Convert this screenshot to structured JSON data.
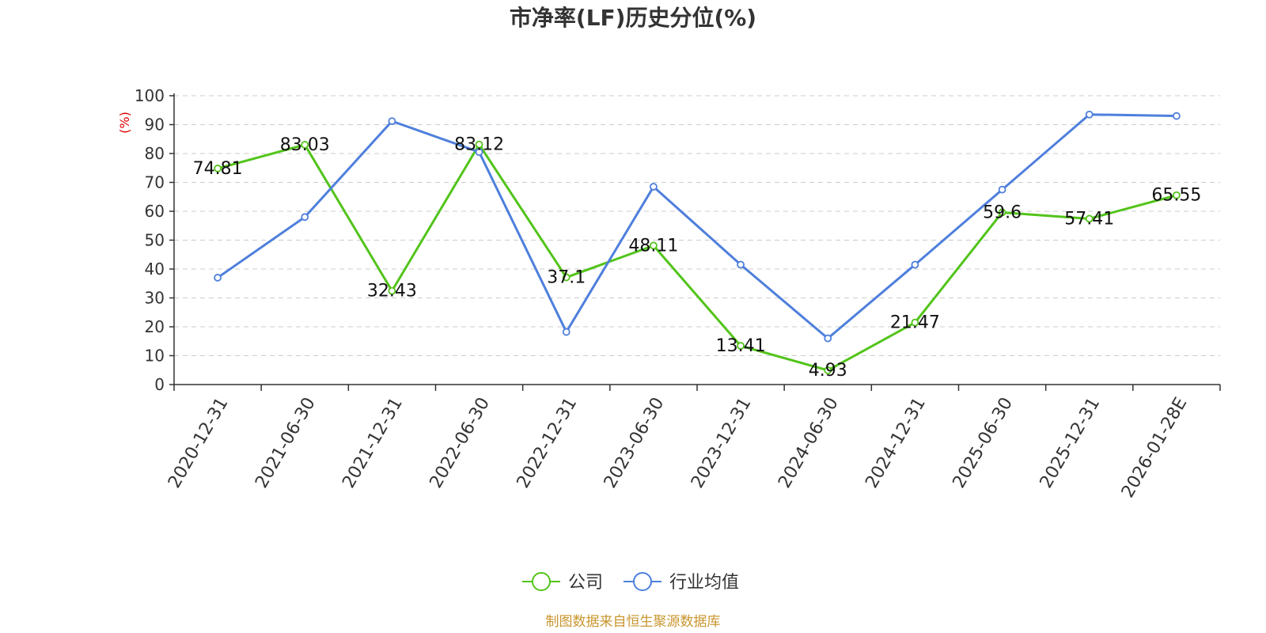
{
  "chart_data": {
    "type": "line",
    "title": "市净率(LF)历史分位(%)",
    "ylabel": "(%)",
    "ylim": [
      0,
      100
    ],
    "yticks": [
      0,
      10,
      20,
      30,
      40,
      50,
      60,
      70,
      80,
      90,
      100
    ],
    "grid": true,
    "legend_position": "bottom",
    "categories": [
      "2020-12-31",
      "2021-06-30",
      "2021-12-31",
      "2022-06-30",
      "2022-12-31",
      "2023-06-30",
      "2023-12-31",
      "2024-06-30",
      "2024-12-31",
      "2025-06-30",
      "2025-12-31",
      "2026-01-28E"
    ],
    "series": [
      {
        "name": "公司",
        "color": "#52c41a",
        "values": [
          74.81,
          83.03,
          32.43,
          83.12,
          37.1,
          48.11,
          13.41,
          4.93,
          21.47,
          59.6,
          57.41,
          65.55
        ],
        "labels": [
          "74.81",
          "83.03",
          "32.43",
          "83.12",
          "37.1",
          "48.11",
          "13.41",
          "4.93",
          "21.47",
          "59.6",
          "57.41",
          "65.55"
        ]
      },
      {
        "name": "行业均值",
        "color": "#4e7fdc",
        "values": [
          37,
          58,
          91.2,
          80.5,
          18.2,
          68.5,
          41.5,
          16,
          41.5,
          67.5,
          93.5,
          93
        ]
      }
    ],
    "source": "制图数据来自恒生聚源数据库",
    "colors": {
      "axis": "#333333",
      "grid": "#cccccc",
      "ylabel": "#e00000",
      "source": "#c8962e"
    }
  }
}
